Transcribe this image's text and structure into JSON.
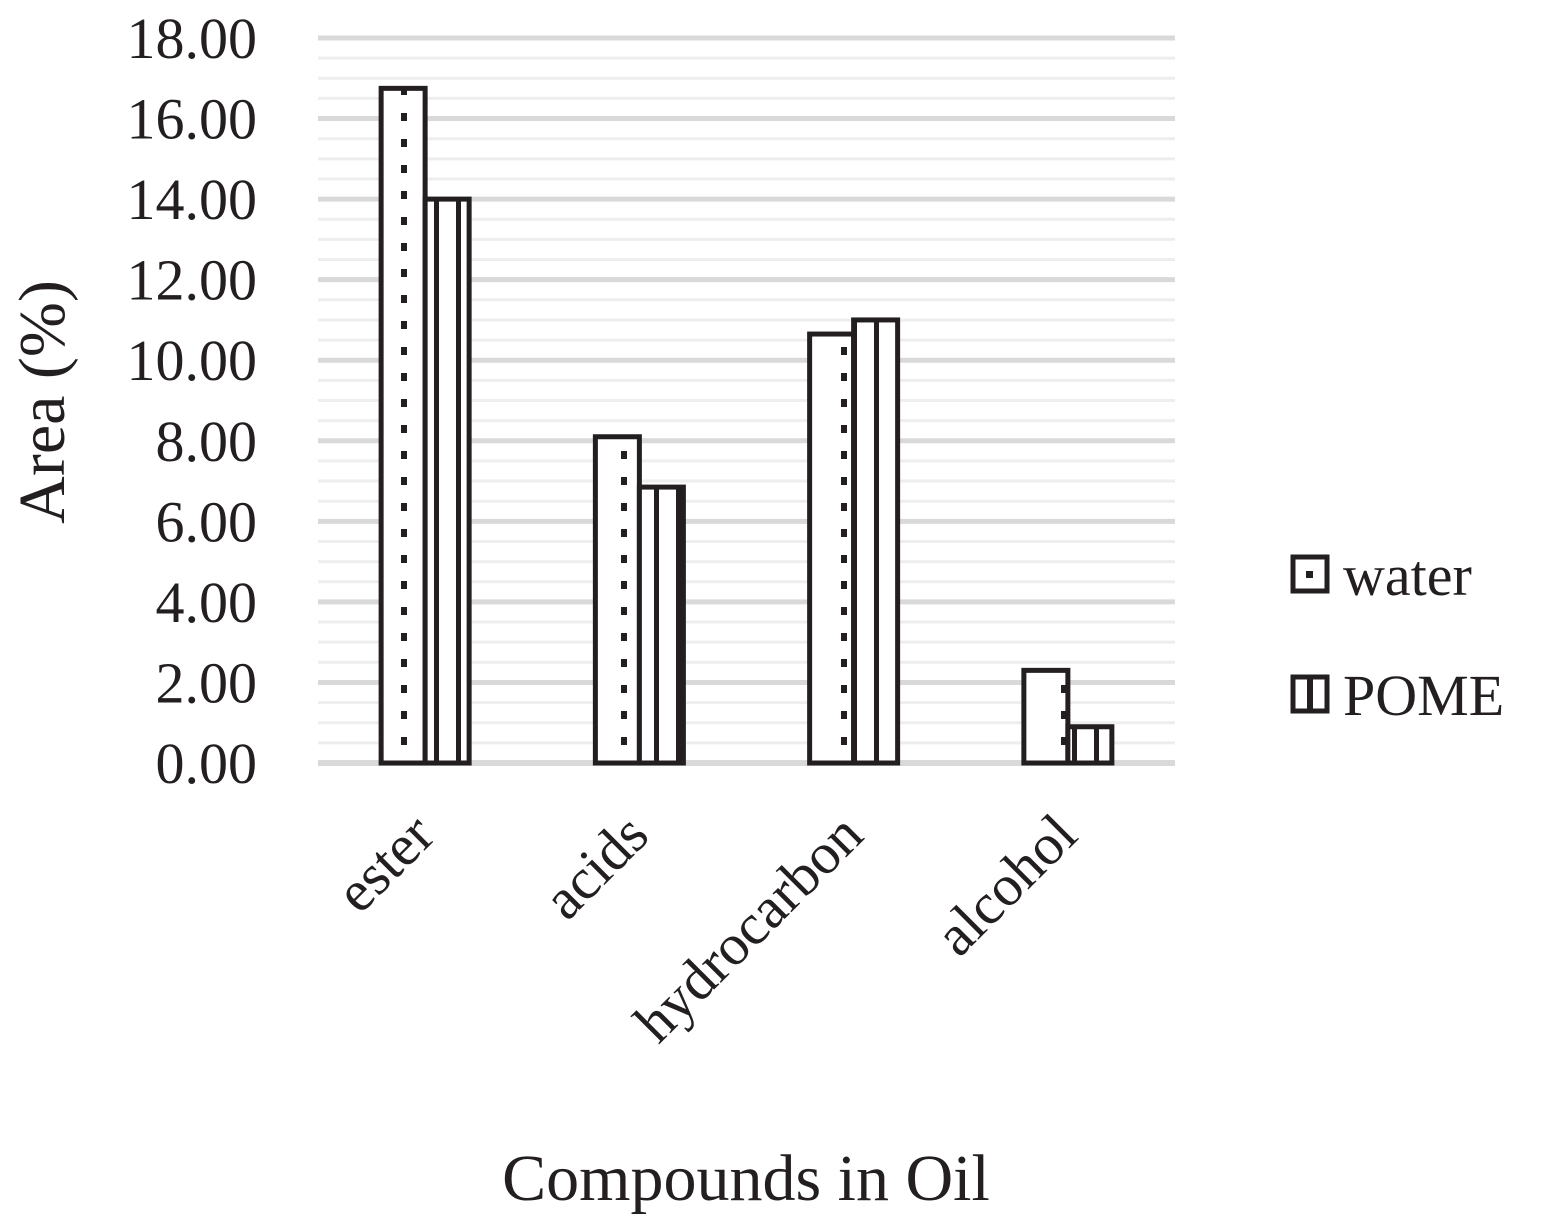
{
  "chart_data": {
    "type": "bar",
    "title": "",
    "xlabel": "Compounds in Oil",
    "ylabel": "Area (%)",
    "categories": [
      "ester",
      "acids",
      "hydrocarbon",
      "alcohol"
    ],
    "series": [
      {
        "name": "water",
        "values": [
          16.75,
          8.1,
          10.65,
          2.3
        ],
        "pattern": "dotted"
      },
      {
        "name": "POME",
        "values": [
          14.0,
          6.85,
          11.0,
          0.9
        ],
        "pattern": "vertical-stripes"
      }
    ],
    "ylim": [
      0,
      18
    ],
    "yticks": [
      "0.00",
      "2.00",
      "4.00",
      "6.00",
      "8.00",
      "10.00",
      "12.00",
      "14.00",
      "16.00",
      "18.00"
    ],
    "grid": true,
    "legend_position": "right",
    "colors": {
      "bar_stroke": "#231f20",
      "bar_fill": "#ffffff",
      "major_grid": "#d9d9d9",
      "minor_grid": "#eeeeee",
      "text": "#231f20"
    }
  }
}
